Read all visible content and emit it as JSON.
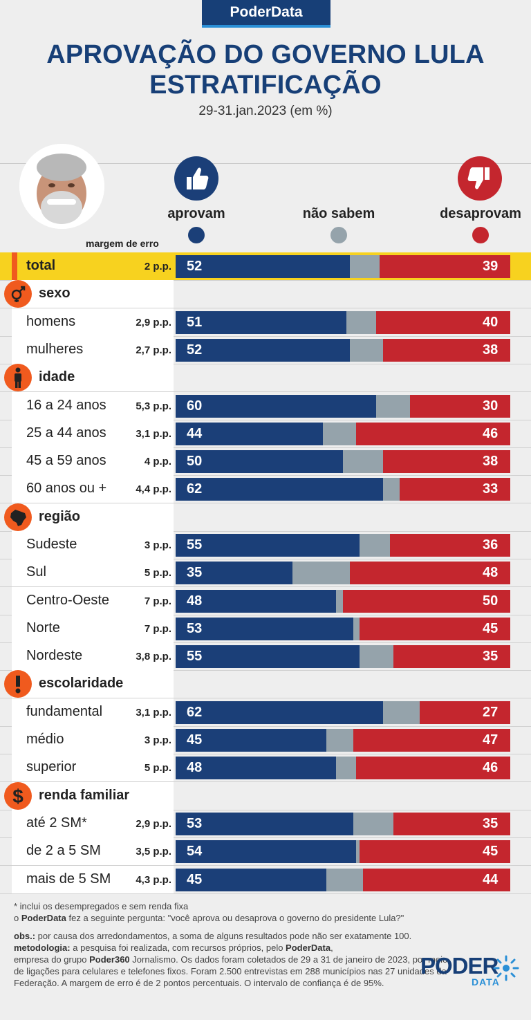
{
  "brand": "PoderData",
  "title_line1": "APROVAÇÃO DO GOVERNO LULA",
  "title_line2": "ESTRATIFICAÇÃO",
  "subtitle": "29-31.jan.2023 (em %)",
  "legend": {
    "approve": "aprovam",
    "dont_know": "não sabem",
    "disapprove": "desaprovam"
  },
  "moe_header": "margem de erro",
  "colors": {
    "approve": "#1b3f78",
    "dont_know": "#95a3ab",
    "disapprove": "#c4262e",
    "accent": "#f05a1e",
    "highlight": "#f7d21f"
  },
  "chart_data": {
    "type": "bar",
    "stacked": true,
    "orientation": "horizontal",
    "xlim": [
      0,
      100
    ],
    "series_names": [
      "aprovam",
      "não sabem",
      "desaprovam"
    ],
    "groups": [
      {
        "name": "",
        "icon": "",
        "rows": [
          {
            "label": "total",
            "moe": "2 p.p.",
            "approve": 52,
            "disapprove": 39
          }
        ]
      },
      {
        "name": "sexo",
        "icon": "gender-icon",
        "rows": [
          {
            "label": "homens",
            "moe": "2,9 p.p.",
            "approve": 51,
            "disapprove": 40
          },
          {
            "label": "mulheres",
            "moe": "2,7 p.p.",
            "approve": 52,
            "disapprove": 38
          }
        ]
      },
      {
        "name": "idade",
        "icon": "person-icon",
        "rows": [
          {
            "label": "16 a 24 anos",
            "moe": "5,3 p.p.",
            "approve": 60,
            "disapprove": 30
          },
          {
            "label": "25 a 44 anos",
            "moe": "3,1 p.p.",
            "approve": 44,
            "disapprove": 46
          },
          {
            "label": "45 a 59 anos",
            "moe": "4 p.p.",
            "approve": 50,
            "disapprove": 38
          },
          {
            "label": "60 anos ou +",
            "moe": "4,4 p.p.",
            "approve": 62,
            "disapprove": 33
          }
        ]
      },
      {
        "name": "região",
        "icon": "brazil-map-icon",
        "rows": [
          {
            "label": "Sudeste",
            "moe": "3 p.p.",
            "approve": 55,
            "disapprove": 36
          },
          {
            "label": "Sul",
            "moe": "5 p.p.",
            "approve": 35,
            "disapprove": 48
          },
          {
            "label": "Centro-Oeste",
            "moe": "7 p.p.",
            "approve": 48,
            "disapprove": 50
          },
          {
            "label": "Norte",
            "moe": "7 p.p.",
            "approve": 53,
            "disapprove": 45
          },
          {
            "label": "Nordeste",
            "moe": "3,8 p.p.",
            "approve": 55,
            "disapprove": 35
          }
        ]
      },
      {
        "name": "escolaridade",
        "icon": "exclamation-icon",
        "rows": [
          {
            "label": "fundamental",
            "moe": "3,1 p.p.",
            "approve": 62,
            "disapprove": 27
          },
          {
            "label": "médio",
            "moe": "3 p.p.",
            "approve": 45,
            "disapprove": 47
          },
          {
            "label": "superior",
            "moe": "5 p.p.",
            "approve": 48,
            "disapprove": 46
          }
        ]
      },
      {
        "name": "renda familiar",
        "icon": "dollar-icon",
        "rows": [
          {
            "label": "até 2 SM*",
            "moe": "2,9 p.p.",
            "approve": 53,
            "disapprove": 35
          },
          {
            "label": "de 2 a 5 SM",
            "moe": "3,5 p.p.",
            "approve": 54,
            "disapprove": 45
          },
          {
            "label": "mais de 5 SM",
            "moe": "4,3 p.p.",
            "approve": 45,
            "disapprove": 44
          }
        ]
      }
    ]
  },
  "footnotes": {
    "line1": "* inclui os desempregados e sem renda fixa",
    "line2_pre": "o ",
    "line2_bold": "PoderData",
    "line2_post": " fez a seguinte pergunta: \"você aprova ou desaprova o governo do presidente Lula?\"",
    "obs_label": "obs.:",
    "obs_text": " por causa dos arredondamentos, a soma de alguns resultados pode não ser exatamente 100.",
    "met_label": "metodologia:",
    "met_text1": " a pesquisa foi realizada, com recursos próprios, pelo ",
    "met_bold1": "PoderData",
    "met_text2": ",",
    "met_text3": "empresa do grupo ",
    "met_bold2": "Poder360",
    "met_text4": " Jornalismo. Os dados foram coletados de 29 a 31 de janeiro de 2023, por meio de ligações para celulares e telefones fixos. Foram 2.500 entrevistas em 288 municípios nas 27 unidades da Federação. A margem de erro é de 2 pontos percentuais. O intervalo de confiança é de 95%."
  },
  "logo": {
    "word1": "PODER",
    "word2": "DATA"
  }
}
